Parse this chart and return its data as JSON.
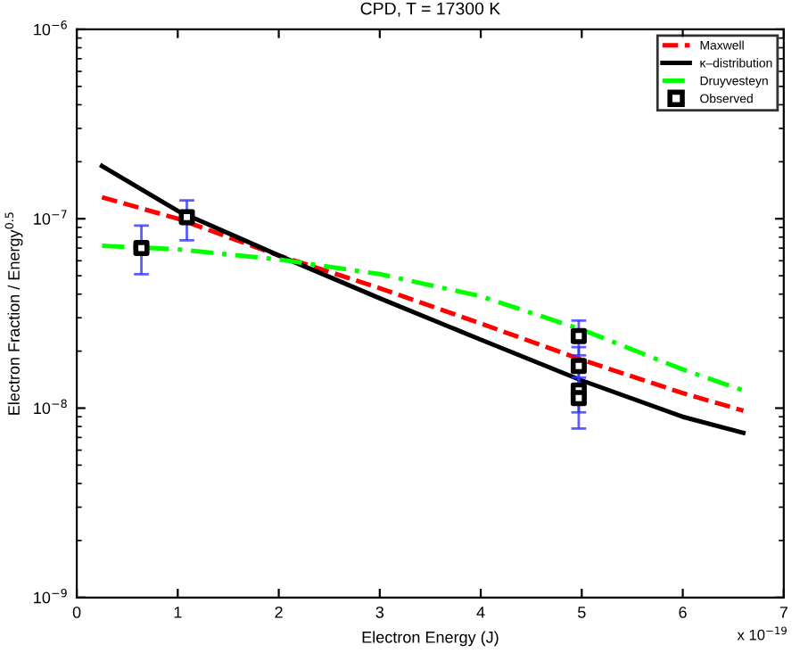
{
  "chart_data": {
    "type": "line",
    "title": "CPD, T = 17300 K",
    "xlabel": "Electron Energy (J)",
    "ylabel": "Electron Fraction / Energy$^{0.5}$",
    "annotations": [
      "x 10$^{−19}$"
    ],
    "log": "y",
    "xlim": [
      0,
      7
    ],
    "xticks": [
      0,
      1,
      2,
      3,
      4,
      5,
      6,
      7
    ],
    "ylim": [
      1e-09,
      1e-06
    ],
    "yticks": [
      {
        "value": 1e-09,
        "label": "10$^{−9}$"
      },
      {
        "value": 1e-08,
        "label": "10$^{−8}$"
      },
      {
        "value": 1e-07,
        "label": "10$^{−7}$"
      },
      {
        "value": 1e-06,
        "label": "10$^{−6}$"
      }
    ],
    "grid": false,
    "legend": "top right",
    "series": [
      {
        "name": "Maxwell",
        "color": "#ff0000",
        "line_style": "dashed",
        "x": [
          0.25,
          1,
          2,
          3,
          4,
          5,
          6,
          6.6
        ],
        "values": [
          1.3e-07,
          1e-07,
          6.4e-08,
          4.3e-08,
          2.8e-08,
          1.8e-08,
          1.2e-08,
          9.7e-09
        ]
      },
      {
        "name": "κ–distribution",
        "color": "#000000",
        "line_style": "solid",
        "x": [
          0.25,
          1,
          2,
          3,
          4,
          5,
          6,
          6.6
        ],
        "values": [
          1.9e-07,
          1.1e-07,
          6.4e-08,
          3.8e-08,
          2.3e-08,
          1.4e-08,
          9e-09,
          7.4e-09
        ]
      },
      {
        "name": "Druyvesteyn",
        "color": "#00ff00",
        "line_style": "dashdot",
        "x": [
          0.25,
          1,
          2,
          3,
          4,
          5,
          6,
          6.6
        ],
        "values": [
          7.2e-08,
          6.9e-08,
          6.1e-08,
          5.1e-08,
          3.9e-08,
          2.6e-08,
          1.6e-08,
          1.24e-08
        ]
      },
      {
        "name": "Observed",
        "type": "scatter",
        "color": "#000000",
        "marker": "square",
        "x": [
          0.64,
          1.09,
          4.97,
          4.97,
          4.97,
          4.97
        ],
        "values": [
          7e-08,
          1.02e-07,
          2.4e-08,
          1.67e-08,
          1.24e-08,
          1.13e-08
        ],
        "errors": [
          [
            5.1e-08,
            9.2e-08
          ],
          [
            7.7e-08,
            1.25e-07
          ],
          [
            1.9e-08,
            2.9e-08
          ],
          [
            1.3e-08,
            2.1e-08
          ],
          [
            9.5e-09,
            1.55e-08
          ],
          [
            7.8e-09,
            1.45e-08
          ]
        ]
      }
    ]
  }
}
